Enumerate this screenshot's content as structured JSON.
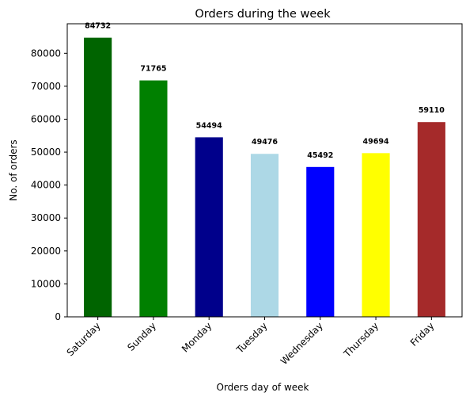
{
  "chart_data": {
    "type": "bar",
    "title": "Orders during the week",
    "xlabel": "Orders day of week",
    "ylabel": "No. of orders",
    "categories": [
      "Saturday",
      "Sunday",
      "Monday",
      "Tuesday",
      "Wednesday",
      "Thursday",
      "Friday"
    ],
    "values": [
      84732,
      71765,
      54494,
      49476,
      45492,
      49694,
      59110
    ],
    "data_labels": [
      "84732",
      "71765",
      "54494",
      "49476",
      "45492",
      "49694",
      "59110"
    ],
    "colors": [
      "#006400",
      "#008000",
      "#00008b",
      "#add8e6",
      "#0000ff",
      "#ffff00",
      "#a52a2a"
    ],
    "yticks": [
      0,
      10000,
      20000,
      30000,
      40000,
      50000,
      60000,
      70000,
      80000
    ],
    "ytick_labels": [
      "0",
      "10000",
      "20000",
      "30000",
      "40000",
      "50000",
      "60000",
      "70000",
      "80000"
    ],
    "ylim": [
      0,
      88969
    ],
    "grid": false,
    "legend": "none"
  }
}
